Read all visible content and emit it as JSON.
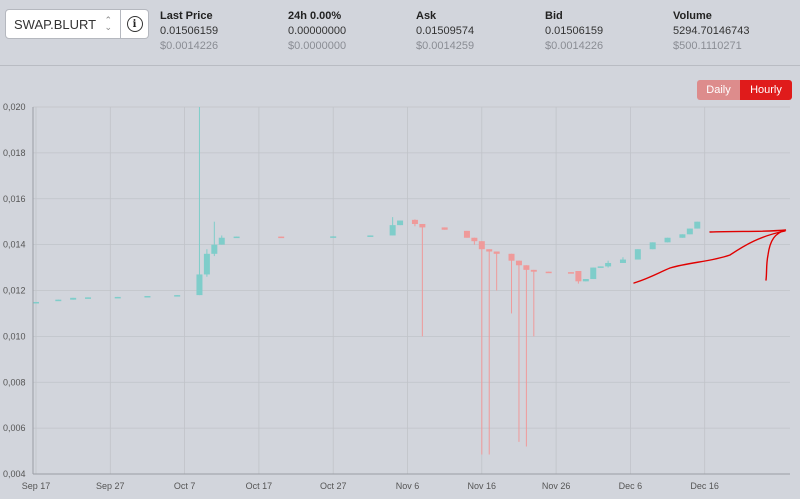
{
  "symbol": {
    "value": "SWAP.BLURT"
  },
  "info_button": {
    "glyph": "i"
  },
  "stats": [
    {
      "label": "Last Price",
      "value": "0.01506159",
      "usd": "$0.0014226"
    },
    {
      "label": "24h 0.00%",
      "value": "0.00000000",
      "usd": "$0.0000000"
    },
    {
      "label": "Ask",
      "value": "0.01509574",
      "usd": "$0.0014259"
    },
    {
      "label": "Bid",
      "value": "0.01506159",
      "usd": "$0.0014226"
    },
    {
      "label": "Volume",
      "value": "5294.70146743",
      "usd": "$500.1110271"
    }
  ],
  "interval_toggle": {
    "daily": "Daily",
    "hourly": "Hourly",
    "selected": "Hourly"
  },
  "colors": {
    "up": "#7fcdca",
    "down": "#ef9a9a",
    "accent": "#e01b1b",
    "annotation": "#e00000"
  },
  "chart_data": {
    "type": "candlestick",
    "ylim": [
      0.004,
      0.02
    ],
    "y_ticks": [
      "0,004",
      "0,006",
      "0,008",
      "0,010",
      "0,012",
      "0,014",
      "0,016",
      "0,018",
      "0,020"
    ],
    "x_ticks": [
      "Sep 17",
      "Sep 27",
      "Oct 7",
      "Oct 17",
      "Oct 27",
      "Nov 6",
      "Nov 16",
      "Nov 26",
      "Dec 6",
      "Dec 16"
    ],
    "grid": true,
    "candles": [
      {
        "x": "Sep 17",
        "o": 0.0115,
        "c": 0.0115,
        "h": 0.0115,
        "l": 0.0115
      },
      {
        "x": "Sep 20",
        "o": 0.01155,
        "c": 0.0116,
        "h": 0.0116,
        "l": 0.01155
      },
      {
        "x": "Sep 22",
        "o": 0.0116,
        "c": 0.01168,
        "h": 0.01168,
        "l": 0.0116
      },
      {
        "x": "Sep 24",
        "o": 0.01168,
        "c": 0.0117,
        "h": 0.0117,
        "l": 0.01168
      },
      {
        "x": "Sep 28",
        "o": 0.0117,
        "c": 0.01172,
        "h": 0.01172,
        "l": 0.0117
      },
      {
        "x": "Oct 2",
        "o": 0.01172,
        "c": 0.01176,
        "h": 0.01176,
        "l": 0.01172
      },
      {
        "x": "Oct 6",
        "o": 0.01176,
        "c": 0.0118,
        "h": 0.0118,
        "l": 0.01176
      },
      {
        "x": "Oct 9",
        "o": 0.0118,
        "c": 0.0127,
        "h": 0.02,
        "l": 0.0118
      },
      {
        "x": "Oct 10",
        "o": 0.0127,
        "c": 0.0136,
        "h": 0.0138,
        "l": 0.0126
      },
      {
        "x": "Oct 11",
        "o": 0.0136,
        "c": 0.014,
        "h": 0.015,
        "l": 0.0135
      },
      {
        "x": "Oct 12",
        "o": 0.014,
        "c": 0.0143,
        "h": 0.0144,
        "l": 0.014
      },
      {
        "x": "Oct 14",
        "o": 0.0143,
        "c": 0.01435,
        "h": 0.01435,
        "l": 0.0143
      },
      {
        "x": "Oct 20",
        "o": 0.01435,
        "c": 0.01432,
        "h": 0.01435,
        "l": 0.0143
      },
      {
        "x": "Oct 27",
        "o": 0.01432,
        "c": 0.01436,
        "h": 0.01436,
        "l": 0.01432
      },
      {
        "x": "Nov 1",
        "o": 0.01436,
        "c": 0.0144,
        "h": 0.0144,
        "l": 0.01436
      },
      {
        "x": "Nov 4",
        "o": 0.0144,
        "c": 0.01485,
        "h": 0.0152,
        "l": 0.0144
      },
      {
        "x": "Nov 5",
        "o": 0.01485,
        "c": 0.01505,
        "h": 0.01505,
        "l": 0.01485
      },
      {
        "x": "Nov 7",
        "o": 0.01508,
        "c": 0.0149,
        "h": 0.0151,
        "l": 0.0148
      },
      {
        "x": "Nov 8",
        "o": 0.0149,
        "c": 0.01475,
        "h": 0.0149,
        "l": 0.01
      },
      {
        "x": "Nov 11",
        "o": 0.01475,
        "c": 0.01465,
        "h": 0.01475,
        "l": 0.01465
      },
      {
        "x": "Nov 14",
        "o": 0.0146,
        "c": 0.0143,
        "h": 0.0146,
        "l": 0.0143
      },
      {
        "x": "Nov 15",
        "o": 0.0143,
        "c": 0.01415,
        "h": 0.0143,
        "l": 0.014
      },
      {
        "x": "Nov 16",
        "o": 0.01415,
        "c": 0.0138,
        "h": 0.01415,
        "l": 0.00485
      },
      {
        "x": "Nov 17",
        "o": 0.0138,
        "c": 0.0137,
        "h": 0.0138,
        "l": 0.00485
      },
      {
        "x": "Nov 18",
        "o": 0.0137,
        "c": 0.0136,
        "h": 0.0137,
        "l": 0.012
      },
      {
        "x": "Nov 20",
        "o": 0.0136,
        "c": 0.0133,
        "h": 0.0136,
        "l": 0.011
      },
      {
        "x": "Nov 21",
        "o": 0.0133,
        "c": 0.0131,
        "h": 0.0133,
        "l": 0.0054
      },
      {
        "x": "Nov 22",
        "o": 0.0131,
        "c": 0.0129,
        "h": 0.0131,
        "l": 0.0052
      },
      {
        "x": "Nov 23",
        "o": 0.0129,
        "c": 0.01282,
        "h": 0.0129,
        "l": 0.01
      },
      {
        "x": "Nov 25",
        "o": 0.01282,
        "c": 0.0128,
        "h": 0.01282,
        "l": 0.0128
      },
      {
        "x": "Nov 28",
        "o": 0.0128,
        "c": 0.01275,
        "h": 0.0128,
        "l": 0.01275
      },
      {
        "x": "Nov 29",
        "o": 0.01285,
        "c": 0.0124,
        "h": 0.01285,
        "l": 0.0123
      },
      {
        "x": "Nov 30",
        "o": 0.0124,
        "c": 0.0125,
        "h": 0.0125,
        "l": 0.0124
      },
      {
        "x": "Dec 1",
        "o": 0.0125,
        "c": 0.013,
        "h": 0.013,
        "l": 0.0125
      },
      {
        "x": "Dec 2",
        "o": 0.013,
        "c": 0.01305,
        "h": 0.01305,
        "l": 0.013
      },
      {
        "x": "Dec 3",
        "o": 0.01305,
        "c": 0.0132,
        "h": 0.0133,
        "l": 0.013
      },
      {
        "x": "Dec 5",
        "o": 0.0132,
        "c": 0.01335,
        "h": 0.01345,
        "l": 0.0132
      },
      {
        "x": "Dec 7",
        "o": 0.01335,
        "c": 0.0138,
        "h": 0.0138,
        "l": 0.01335
      },
      {
        "x": "Dec 9",
        "o": 0.0138,
        "c": 0.0141,
        "h": 0.0141,
        "l": 0.0138
      },
      {
        "x": "Dec 11",
        "o": 0.0141,
        "c": 0.0143,
        "h": 0.0143,
        "l": 0.0141
      },
      {
        "x": "Dec 13",
        "o": 0.0143,
        "c": 0.01445,
        "h": 0.01445,
        "l": 0.0143
      },
      {
        "x": "Dec 14",
        "o": 0.01445,
        "c": 0.0147,
        "h": 0.0147,
        "l": 0.01445
      },
      {
        "x": "Dec 15",
        "o": 0.0147,
        "c": 0.015,
        "h": 0.015,
        "l": 0.0147
      }
    ]
  }
}
